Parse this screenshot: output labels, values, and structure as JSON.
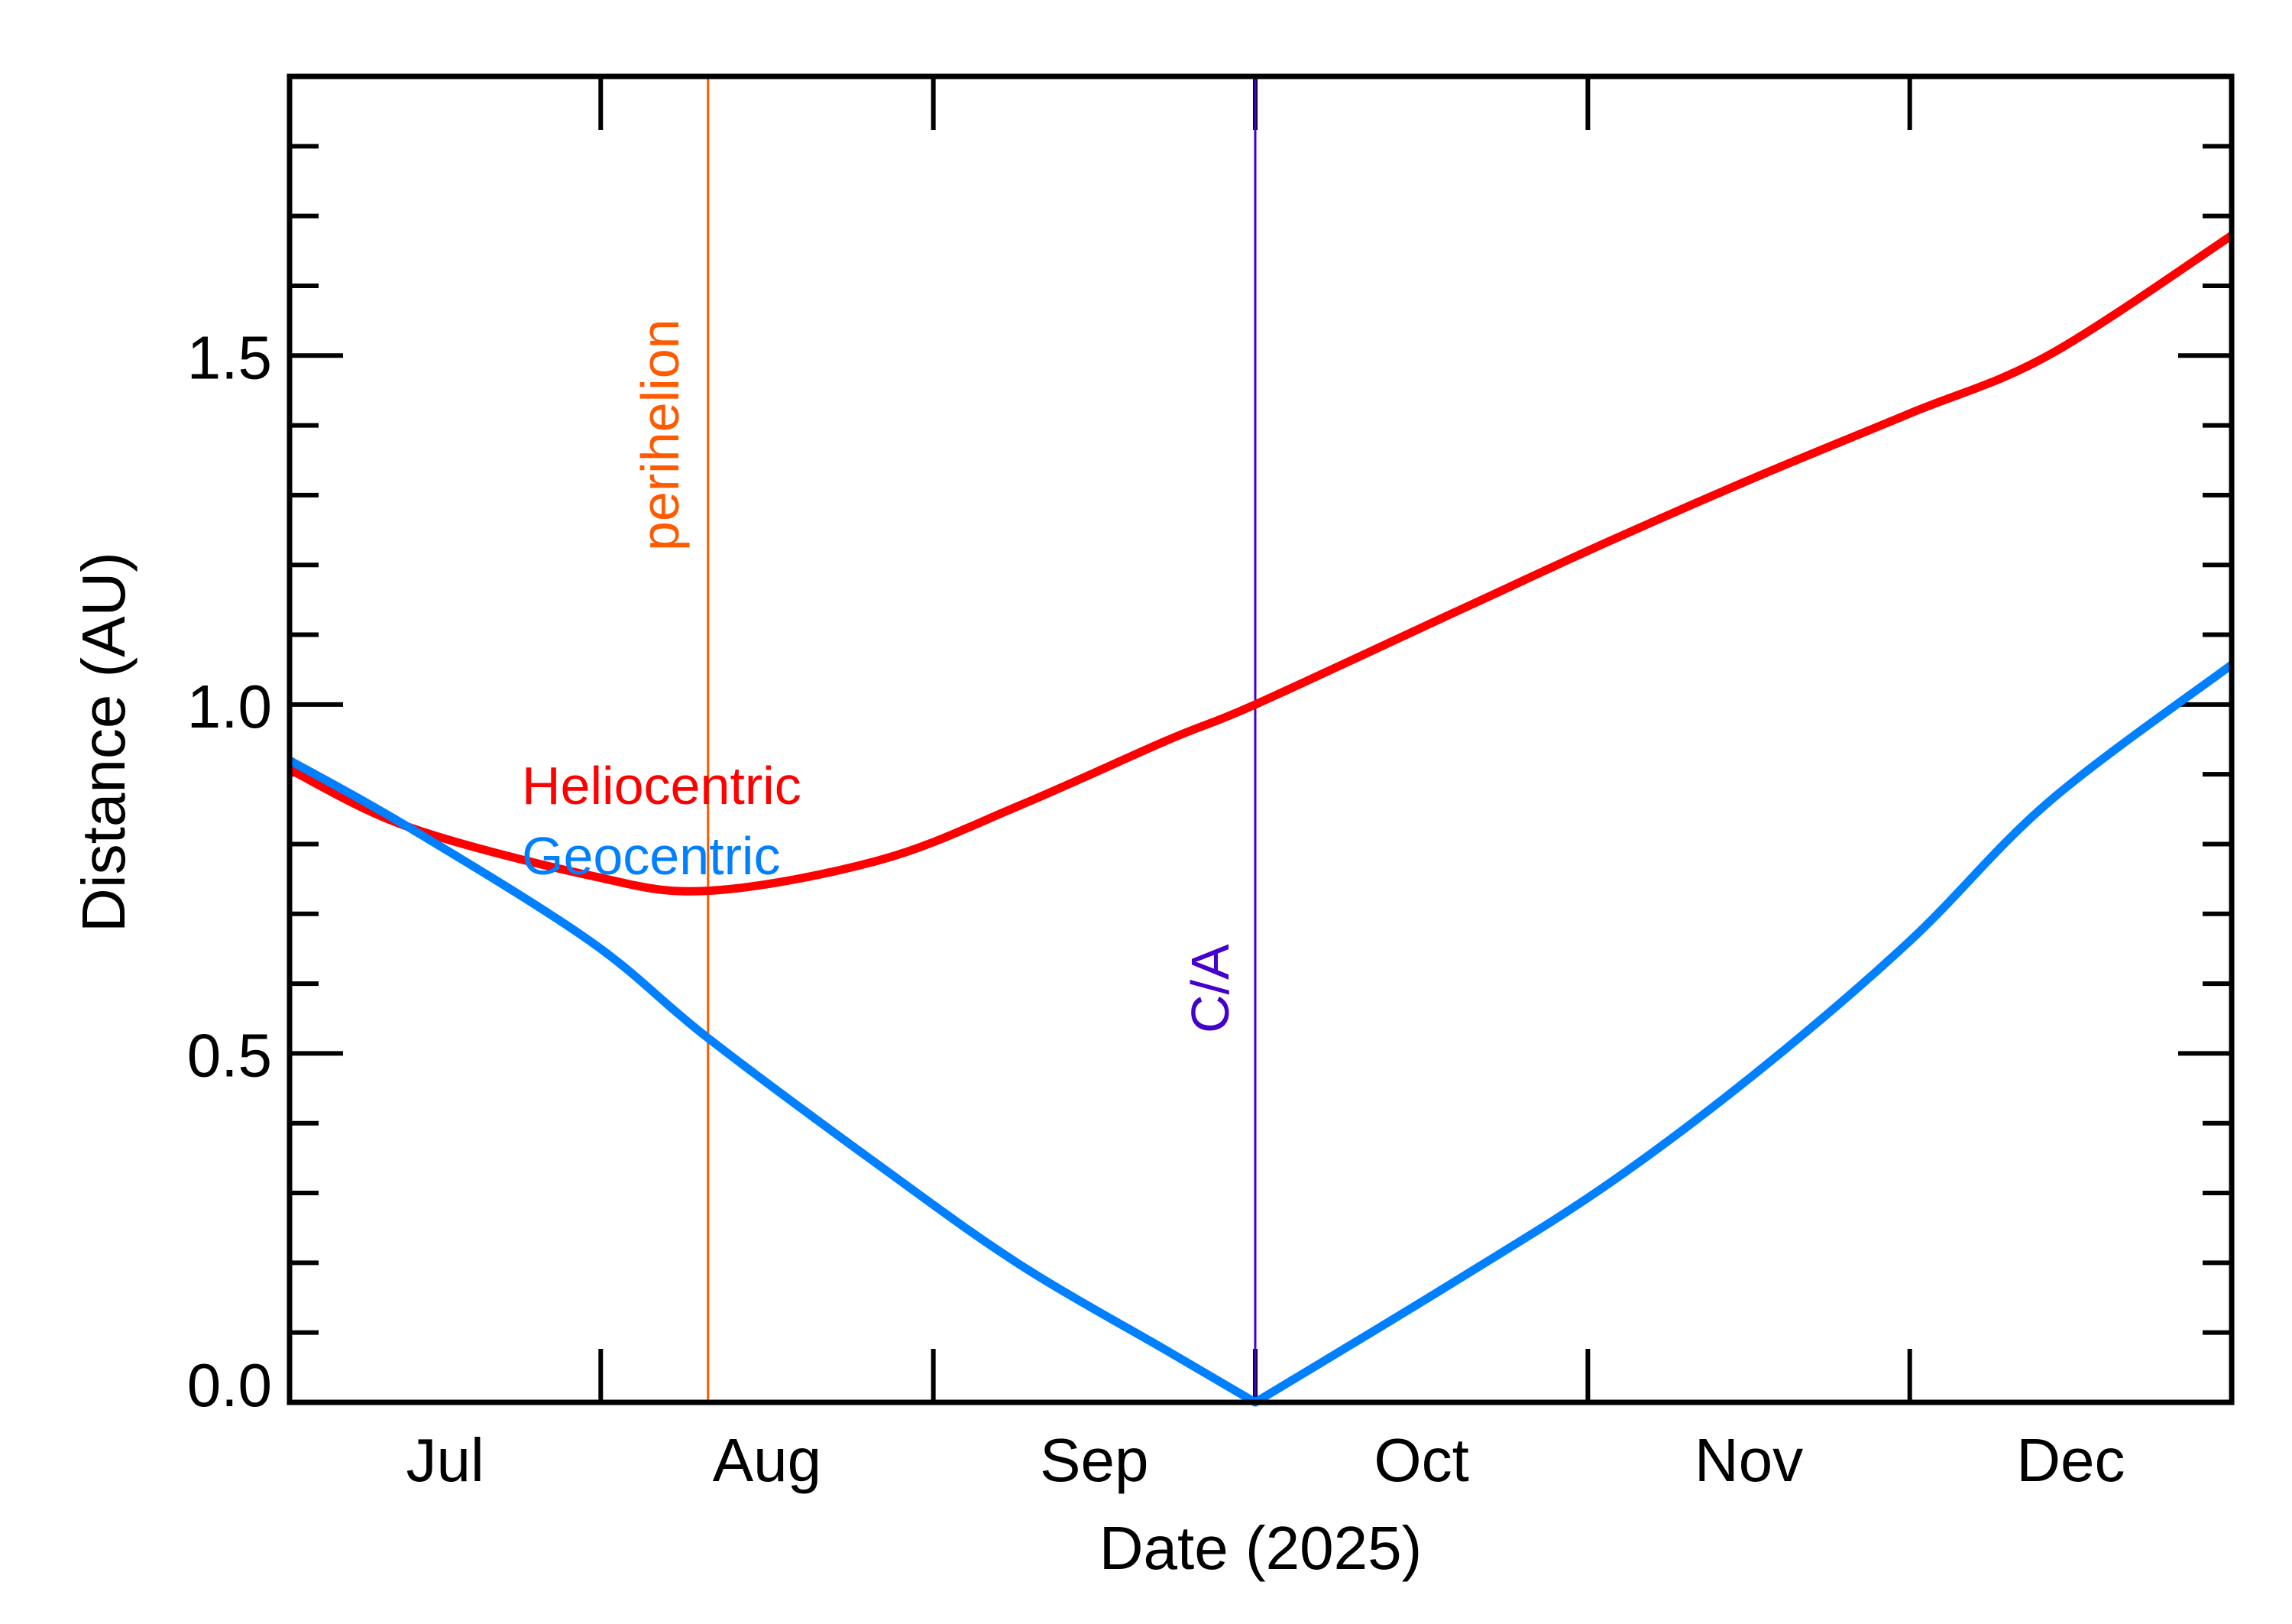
{
  "chart_data": {
    "type": "line",
    "title": "",
    "xlabel": "Date (2025)",
    "ylabel": "Distance (AU)",
    "xlim": [
      "2025-07-03",
      "2025-12-31"
    ],
    "ylim": [
      0,
      1.9
    ],
    "x_tick_labels": [
      "Jul",
      "Aug",
      "Sep",
      "Oct",
      "Nov",
      "Dec"
    ],
    "x_tick_dates": [
      "2025-08-01",
      "2025-09-01",
      "2025-10-01",
      "2025-11-01",
      "2025-12-01"
    ],
    "x_label_months": [
      "2025-07",
      "2025-08",
      "2025-09",
      "2025-10",
      "2025-11",
      "2025-12"
    ],
    "y_ticks": [
      0.0,
      0.5,
      1.0,
      1.5
    ],
    "y_tick_labels": [
      "0.0",
      "0.5",
      "1.0",
      "1.5"
    ],
    "grid": false,
    "series": [
      {
        "name": "Heliocentric",
        "color": "#ff0000",
        "x": [
          "2025-07-03",
          "2025-07-14",
          "2025-07-31",
          "2025-08-11",
          "2025-08-27",
          "2025-09-09",
          "2025-09-23",
          "2025-10-01",
          "2025-10-20",
          "2025-11-03",
          "2025-11-17",
          "2025-12-01",
          "2025-12-14",
          "2025-12-31"
        ],
        "y": [
          0.907,
          0.825,
          0.755,
          0.733,
          0.777,
          0.855,
          0.95,
          1.0,
          1.135,
          1.234,
          1.328,
          1.417,
          1.501,
          1.672
        ]
      },
      {
        "name": "Geocentric",
        "color": "#0080ff",
        "x": [
          "2025-07-03",
          "2025-07-14",
          "2025-07-31",
          "2025-08-11",
          "2025-08-27",
          "2025-09-09",
          "2025-09-23",
          "2025-10-01",
          "2025-10-20",
          "2025-11-03",
          "2025-11-17",
          "2025-12-01",
          "2025-12-14",
          "2025-12-31"
        ],
        "y": [
          0.92,
          0.825,
          0.661,
          0.522,
          0.339,
          0.198,
          0.072,
          0.0,
          0.177,
          0.314,
          0.476,
          0.661,
          0.861,
          1.057
        ]
      }
    ],
    "annotations": [
      {
        "label": "perihelion",
        "date": "2025-08-11",
        "color": "#ff5a00"
      },
      {
        "label": "C/A",
        "date": "2025-10-01",
        "color": "#4400cc"
      }
    ]
  }
}
